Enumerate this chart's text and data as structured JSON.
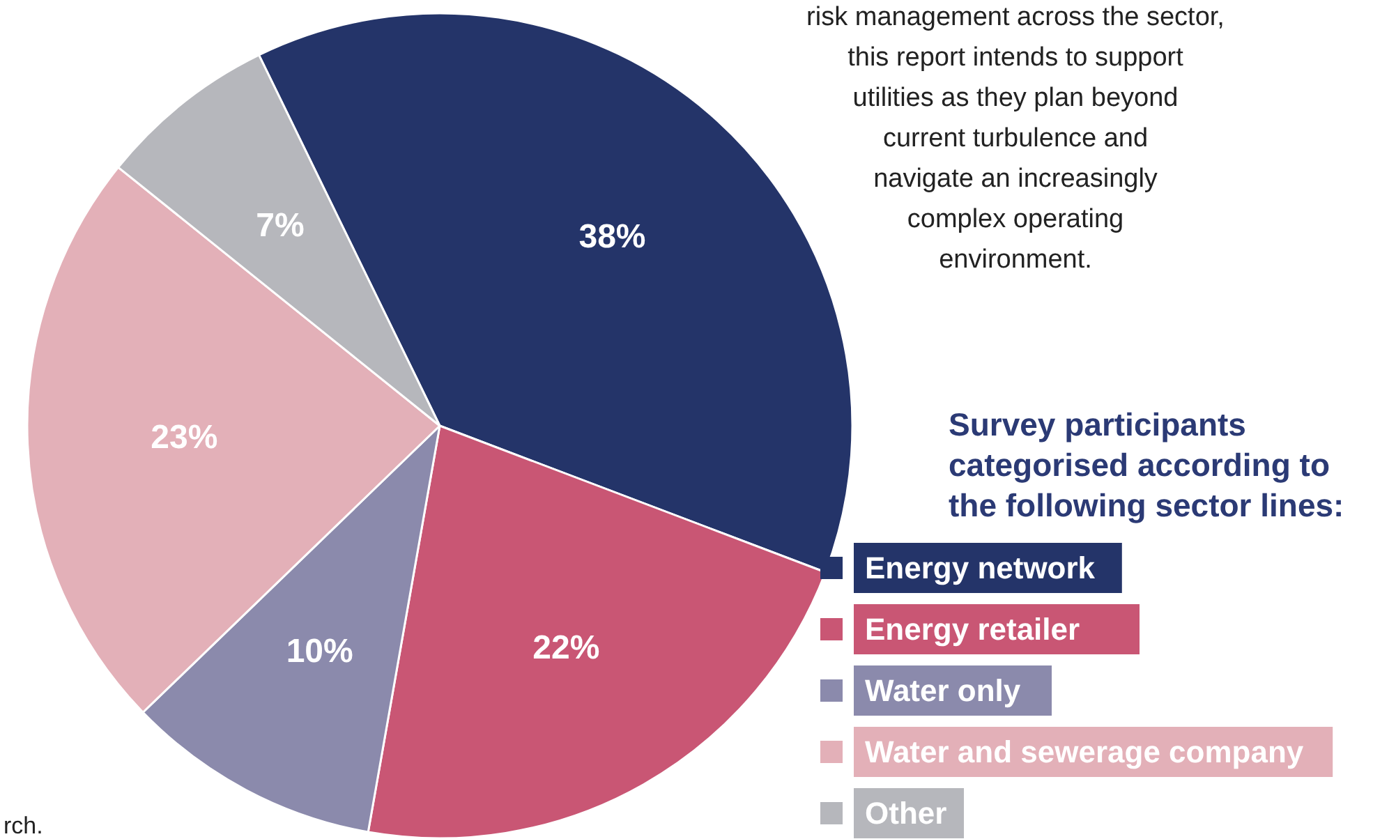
{
  "chart_data": {
    "type": "pie",
    "categories": [
      "Energy network",
      "Energy retailer",
      "Water only",
      "Water and sewerage company",
      "Other"
    ],
    "values": [
      38,
      22,
      10,
      23,
      7
    ],
    "colors": [
      "#243469",
      "#c95674",
      "#8b8aac",
      "#e3b0b8",
      "#b6b7bc"
    ],
    "value_labels": [
      "38%",
      "22%",
      "10%",
      "23%",
      "7%"
    ],
    "legend": "right",
    "legend_title": "Survey participants categorised according to the following sector lines:",
    "annotations": [
      "risk management across the sector,",
      "this report intends to support",
      "utilities as they plan beyond",
      "current turbulence and",
      "navigate an increasingly",
      "complex operating",
      "environment.",
      "rch."
    ]
  }
}
